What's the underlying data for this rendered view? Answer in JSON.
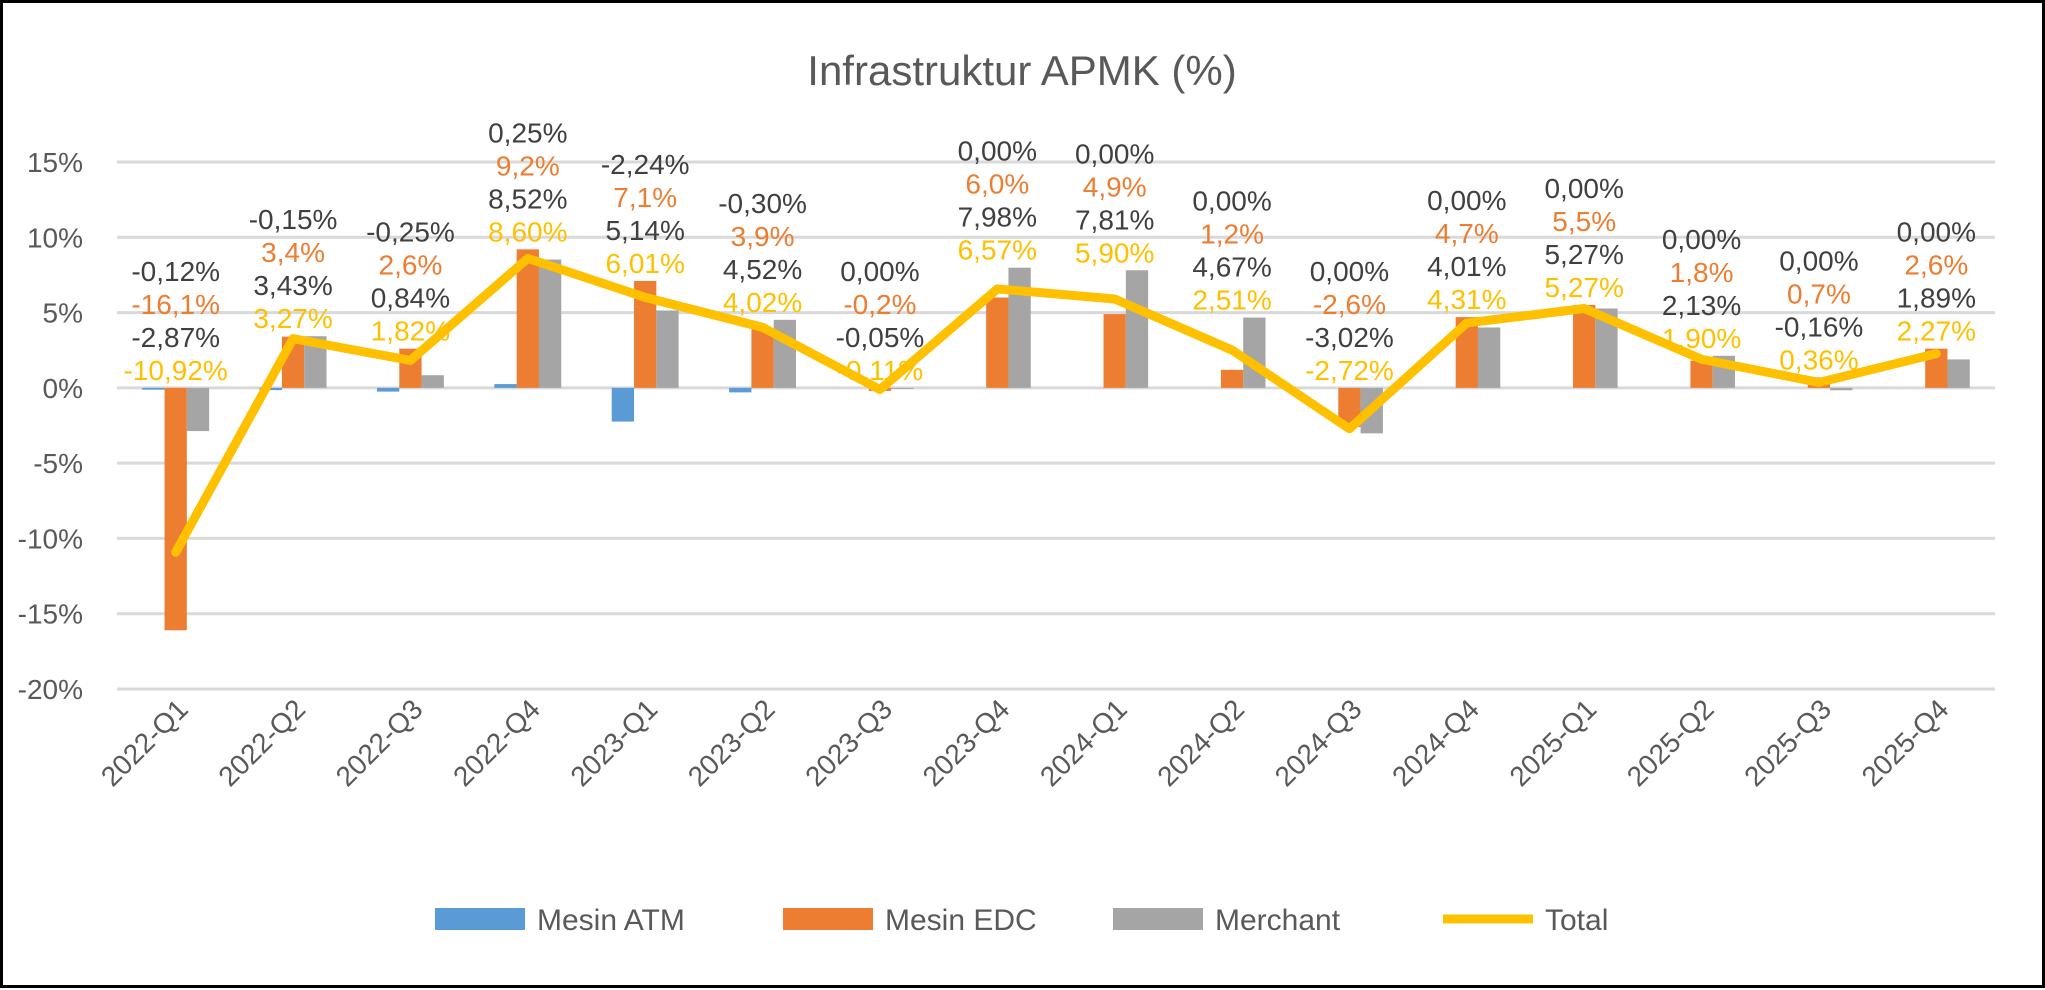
{
  "chart_data": {
    "type": "bar",
    "title": "Infrastruktur APMK (%)",
    "xlabel": "",
    "ylabel": "",
    "ylim": [
      -20,
      15
    ],
    "yticks": [
      -20,
      -15,
      -10,
      -5,
      0,
      5,
      10,
      15
    ],
    "ytick_labels": [
      "-20%",
      "-15%",
      "-10%",
      "-5%",
      "0%",
      "5%",
      "10%",
      "15%"
    ],
    "grid": true,
    "legend_position": "bottom",
    "categories": [
      "2022-Q1",
      "2022-Q2",
      "2022-Q3",
      "2022-Q4",
      "2023-Q1",
      "2023-Q2",
      "2023-Q3",
      "2023-Q4",
      "2024-Q1",
      "2024-Q2",
      "2024-Q3",
      "2024-Q4",
      "2025-Q1",
      "2025-Q2",
      "2025-Q3",
      "2025-Q4"
    ],
    "series": [
      {
        "name": "Mesin ATM",
        "type": "bar",
        "color": "#5B9BD5",
        "label_color": "#404040",
        "decimals": 2,
        "values": [
          -0.12,
          -0.15,
          -0.25,
          0.25,
          -2.24,
          -0.3,
          0.0,
          0.0,
          0.0,
          0.0,
          0.0,
          0.0,
          0.0,
          0.0,
          0.0,
          0.0
        ]
      },
      {
        "name": "Mesin EDC",
        "type": "bar",
        "color": "#ED7D31",
        "label_color": "#ED7D31",
        "decimals": 1,
        "values": [
          -16.1,
          3.4,
          2.6,
          9.2,
          7.1,
          3.9,
          -0.2,
          6.0,
          4.9,
          1.2,
          -2.6,
          4.7,
          5.5,
          1.8,
          0.7,
          2.6
        ]
      },
      {
        "name": "Merchant",
        "type": "bar",
        "color": "#A5A5A5",
        "label_color": "#404040",
        "decimals": 2,
        "values": [
          -2.87,
          3.43,
          0.84,
          8.52,
          5.14,
          4.52,
          -0.05,
          7.98,
          7.81,
          4.67,
          -3.02,
          4.01,
          5.27,
          2.13,
          -0.16,
          1.89
        ]
      },
      {
        "name": "Total",
        "type": "line",
        "color": "#FFC000",
        "label_color": "#FFC000",
        "decimals": 2,
        "values": [
          -10.92,
          3.27,
          1.82,
          8.6,
          6.01,
          4.02,
          -0.11,
          6.57,
          5.9,
          2.51,
          -2.72,
          4.31,
          5.27,
          1.9,
          0.36,
          2.27
        ]
      }
    ]
  }
}
